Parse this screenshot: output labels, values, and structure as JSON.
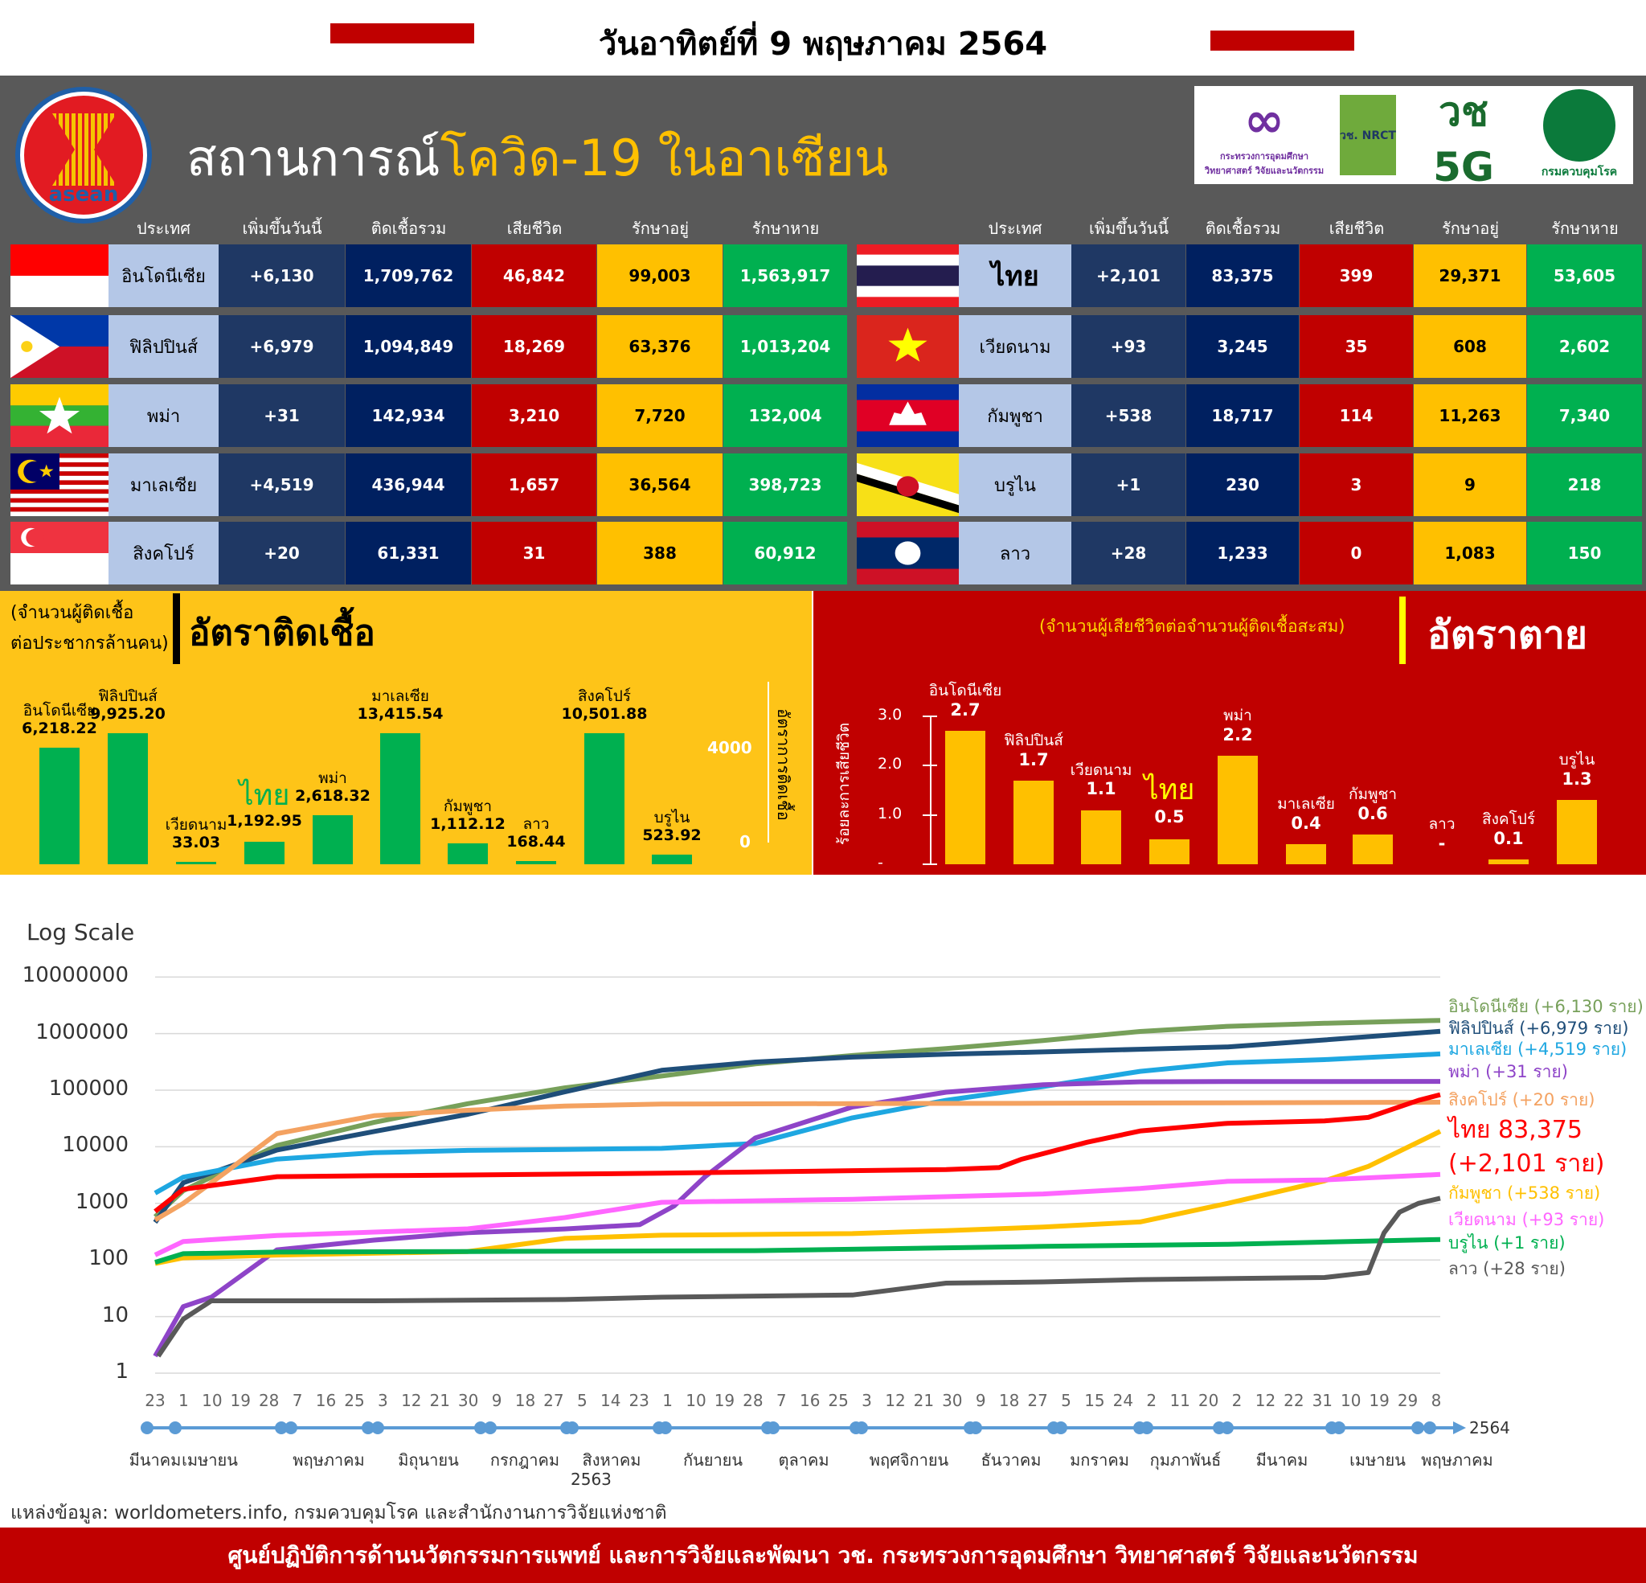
{
  "header": {
    "date_title": "วันอาทิตย์ที่ 9 พฤษภาคม 2564",
    "title_white": "สถานการณ์",
    "title_yellow": "โควิด-19 ในอาเซียน",
    "asean_logo_text": "asean",
    "logos": [
      "กระทรวงการอุดมศึกษา วิทยาศาสตร์ วิจัยและนวัตกรรม",
      "วช. NRCT",
      "วช 5G",
      "กรมควบคุมโรค"
    ]
  },
  "colors": {
    "increase": "#1f3864",
    "total": "#002060",
    "deaths": "#c00000",
    "active": "#ffc000",
    "recovered": "#00b050",
    "name": "#b4c7e7",
    "panel": "#595959"
  },
  "table": {
    "headers": [
      "ประเทศ",
      "เพิ่มขึ้นวันนี้",
      "ติดเชื้อรวม",
      "เสียชีวิต",
      "รักษาอยู่",
      "รักษาหาย"
    ],
    "left": [
      {
        "flag": "indonesia-flag",
        "name": "อินโดนีเซีย",
        "increase": "+6,130",
        "total": "1,709,762",
        "deaths": "46,842",
        "active": "99,003",
        "recovered": "1,563,917"
      },
      {
        "flag": "philippines-flag",
        "name": "ฟิลิปปินส์",
        "increase": "+6,979",
        "total": "1,094,849",
        "deaths": "18,269",
        "active": "63,376",
        "recovered": "1,013,204"
      },
      {
        "flag": "myanmar-flag",
        "name": "พม่า",
        "increase": "+31",
        "total": "142,934",
        "deaths": "3,210",
        "active": "7,720",
        "recovered": "132,004"
      },
      {
        "flag": "malaysia-flag",
        "name": "มาเลเซีย",
        "increase": "+4,519",
        "total": "436,944",
        "deaths": "1,657",
        "active": "36,564",
        "recovered": "398,723"
      },
      {
        "flag": "singapore-flag",
        "name": "สิงคโปร์",
        "increase": "+20",
        "total": "61,331",
        "deaths": "31",
        "active": "388",
        "recovered": "60,912"
      }
    ],
    "right": [
      {
        "flag": "thailand-flag",
        "name": "ไทย",
        "increase": "+2,101",
        "total": "83,375",
        "deaths": "399",
        "active": "29,371",
        "recovered": "53,605"
      },
      {
        "flag": "vietnam-flag",
        "name": "เวียดนาม",
        "increase": "+93",
        "total": "3,245",
        "deaths": "35",
        "active": "608",
        "recovered": "2,602"
      },
      {
        "flag": "cambodia-flag",
        "name": "กัมพูชา",
        "increase": "+538",
        "total": "18,717",
        "deaths": "114",
        "active": "11,263",
        "recovered": "7,340"
      },
      {
        "flag": "brunei-flag",
        "name": "บรูไน",
        "increase": "+1",
        "total": "230",
        "deaths": "3",
        "active": "9",
        "recovered": "218"
      },
      {
        "flag": "laos-flag",
        "name": "ลาว",
        "increase": "+28",
        "total": "1,233",
        "deaths": "0",
        "active": "1,083",
        "recovered": "150"
      }
    ]
  },
  "chart_data": [
    {
      "type": "bar",
      "title": "อัตราติดเชื้อ",
      "subtitle": [
        "(จำนวนผู้ติดเชื้อ",
        "ต่อประชากรล้านคน)"
      ],
      "ylabel": "อัตราการติดเชื้อ",
      "yticks": [
        "4000",
        "0"
      ],
      "bar_color": "#00b050",
      "categories": [
        "อินโดนีเซีย",
        "ฟิลิปปินส์",
        "เวียดนาม",
        "ไทย",
        "พม่า",
        "มาเลเซีย",
        "กัมพูชา",
        "ลาว",
        "สิงคโปร์",
        "บรูไน"
      ],
      "values": [
        6218.22,
        9925.2,
        33.03,
        1192.95,
        2618.32,
        13415.54,
        1112.12,
        168.44,
        10501.88,
        523.92
      ],
      "labels": [
        "6,218.22",
        "9,925.20",
        "33.03",
        "1,192.95",
        "2,618.32",
        "13,415.54",
        "1,112.12",
        "168.44",
        "10,501.88",
        "523.92"
      ]
    },
    {
      "type": "bar",
      "title": "อัตราตาย",
      "subtitle": "(จำนวนผู้เสียชีวิตต่อจำนวนผู้ติดเชื้อสะสม)",
      "ylabel": "ร้อยละการเสียชีวิต",
      "yticks": [
        "3.0",
        "2.0",
        "1.0",
        "-"
      ],
      "ylim": [
        0,
        3
      ],
      "bar_color": "#ffc000",
      "categories": [
        "อินโดนีเซีย",
        "ฟิลิปปินส์",
        "เวียดนาม",
        "ไทย",
        "พม่า",
        "มาเลเซีย",
        "กัมพูชา",
        "ลาว",
        "สิงคโปร์",
        "บรูไน"
      ],
      "values": [
        2.7,
        1.7,
        1.1,
        0.5,
        2.2,
        0.4,
        0.6,
        0,
        0.1,
        1.3
      ],
      "labels": [
        "2.7",
        "1.7",
        "1.1",
        "0.5",
        "2.2",
        "0.4",
        "0.6",
        "-",
        "0.1",
        "1.3"
      ]
    },
    {
      "type": "line",
      "scale": "log",
      "title": "Log Scale",
      "ylim": [
        1,
        10000000
      ],
      "yticks": [
        "10000000",
        "1000000",
        "100000",
        "10000",
        "1000",
        "100",
        "10",
        "1"
      ],
      "xticks": [
        "23",
        "1",
        "10",
        "19",
        "28",
        "7",
        "16",
        "25",
        "3",
        "12",
        "21",
        "30",
        "9",
        "18",
        "27",
        "5",
        "14",
        "23",
        "1",
        "10",
        "19",
        "28",
        "7",
        "16",
        "25",
        "3",
        "12",
        "21",
        "30",
        "9",
        "18",
        "27",
        "5",
        "15",
        "24",
        "2",
        "11",
        "20",
        "2",
        "12",
        "22",
        "31",
        "10",
        "19",
        "29",
        "8"
      ],
      "months": [
        "มีนาคม",
        "เมษายน",
        "พฤษภาคม",
        "มิถุนายน",
        "กรกฎาคม",
        "สิงหาคม",
        "กันยายน",
        "ตุลาคม",
        "พฤศจิกายน",
        "ธันวาคม",
        "มกราคม",
        "กุมภาพันธ์",
        "มีนาคม",
        "เมษายน",
        "พฤษภาคม"
      ],
      "year_labels": [
        "2563",
        "2564"
      ],
      "series": [
        {
          "name": "อินโดนีเซีย (+6,130  ราย)",
          "color": "#77a05a",
          "points": [
            [
              "2020-03-23",
              579
            ],
            [
              "2020-04-01",
              1677
            ],
            [
              "2020-05-01",
              10551
            ],
            [
              "2020-06-01",
              26940
            ],
            [
              "2020-07-01",
              57770
            ],
            [
              "2020-08-01",
              109936
            ],
            [
              "2020-09-01",
              177571
            ],
            [
              "2020-10-01",
              291182
            ],
            [
              "2020-11-01",
              410088
            ],
            [
              "2020-12-01",
              543975
            ],
            [
              "2021-01-01",
              751270
            ],
            [
              "2021-02-01",
              1089308
            ],
            [
              "2021-03-01",
              1341314
            ],
            [
              "2021-04-01",
              1517854
            ],
            [
              "2021-05-08",
              1709762
            ]
          ]
        },
        {
          "name": "ฟิลิปปินส์ (+6,979 ราย)",
          "color": "#1f4e79",
          "points": [
            [
              "2020-03-23",
              462
            ],
            [
              "2020-04-01",
              2311
            ],
            [
              "2020-05-01",
              8772
            ],
            [
              "2020-06-01",
              18638
            ],
            [
              "2020-07-01",
              37514
            ],
            [
              "2020-08-01",
              93354
            ],
            [
              "2020-09-01",
              224264
            ],
            [
              "2020-10-01",
              314079
            ],
            [
              "2020-11-01",
              383113
            ],
            [
              "2020-12-01",
              431630
            ],
            [
              "2021-01-01",
              474064
            ],
            [
              "2021-02-01",
              528853
            ],
            [
              "2021-03-01",
              580442
            ],
            [
              "2021-04-01",
              771497
            ],
            [
              "2021-05-08",
              1094849
            ]
          ]
        },
        {
          "name": "มาเลเซีย (+4,519 ราย)",
          "color": "#1ea7e1",
          "points": [
            [
              "2020-03-23",
              1518
            ],
            [
              "2020-04-01",
              2908
            ],
            [
              "2020-05-01",
              6071
            ],
            [
              "2020-06-01",
              7857
            ],
            [
              "2020-07-01",
              8640
            ],
            [
              "2020-08-01",
              8976
            ],
            [
              "2020-09-01",
              9354
            ],
            [
              "2020-10-01",
              11484
            ],
            [
              "2020-11-01",
              32505
            ],
            [
              "2020-12-01",
              66228
            ],
            [
              "2021-01-01",
              116014
            ],
            [
              "2021-02-01",
              214959
            ],
            [
              "2021-03-01",
              304135
            ],
            [
              "2021-04-01",
              346223
            ],
            [
              "2021-05-08",
              436944
            ]
          ]
        },
        {
          "name": "พม่า (+31 ราย)",
          "color": "#8e44c8",
          "points": [
            [
              "2020-03-23",
              2
            ],
            [
              "2020-04-01",
              15
            ],
            [
              "2020-04-10",
              22
            ],
            [
              "2020-05-01",
              151
            ],
            [
              "2020-06-01",
              224
            ],
            [
              "2020-07-01",
              303
            ],
            [
              "2020-08-01",
              353
            ],
            [
              "2020-08-25",
              420
            ],
            [
              "2020-09-05",
              900
            ],
            [
              "2020-09-15",
              3000
            ],
            [
              "2020-10-01",
              14383
            ],
            [
              "2020-11-01",
              50403
            ],
            [
              "2020-12-01",
              92044
            ],
            [
              "2021-01-01",
              124630
            ],
            [
              "2021-02-01",
              140600
            ],
            [
              "2021-03-01",
              142000
            ],
            [
              "2021-05-08",
              142934
            ]
          ]
        },
        {
          "name": "สิงคโปร์ (+20 ราย)",
          "color": "#f4a261",
          "points": [
            [
              "2020-03-23",
              509
            ],
            [
              "2020-04-01",
              1000
            ],
            [
              "2020-04-15",
              3699
            ],
            [
              "2020-05-01",
              17101
            ],
            [
              "2020-06-01",
              35292
            ],
            [
              "2020-07-01",
              44122
            ],
            [
              "2020-08-01",
              52512
            ],
            [
              "2020-09-01",
              56852
            ],
            [
              "2020-11-01",
              57980
            ],
            [
              "2021-01-01",
              58599
            ],
            [
              "2021-04-01",
              60450
            ],
            [
              "2021-05-08",
              61331
            ]
          ]
        },
        {
          "name": "ไทย 83,375 (+2,101 ราย)",
          "color": "#ff0000",
          "points": [
            [
              "2020-03-23",
              721
            ],
            [
              "2020-04-01",
              1771
            ],
            [
              "2020-05-01",
              2960
            ],
            [
              "2020-06-01",
              3081
            ],
            [
              "2020-07-01",
              3173
            ],
            [
              "2020-09-01",
              3411
            ],
            [
              "2020-11-01",
              3780
            ],
            [
              "2020-12-01",
              3961
            ],
            [
              "2020-12-18",
              4300
            ],
            [
              "2020-12-25",
              6000
            ],
            [
              "2021-01-15",
              12000
            ],
            [
              "2021-02-01",
              19000
            ],
            [
              "2021-03-01",
              26000
            ],
            [
              "2021-04-01",
              28700
            ],
            [
              "2021-04-15",
              33000
            ],
            [
              "2021-05-01",
              66000
            ],
            [
              "2021-05-08",
              83375
            ]
          ]
        },
        {
          "name": "กัมพูชา (+538 ราย)",
          "color": "#ffc000",
          "points": [
            [
              "2020-03-23",
              87
            ],
            [
              "2020-04-01",
              109
            ],
            [
              "2020-05-01",
              122
            ],
            [
              "2020-07-01",
              141
            ],
            [
              "2020-08-01",
              240
            ],
            [
              "2020-09-01",
              274
            ],
            [
              "2020-11-01",
              292
            ],
            [
              "2020-12-01",
              330
            ],
            [
              "2021-01-01",
              382
            ],
            [
              "2021-02-01",
              470
            ],
            [
              "2021-03-01",
              1000
            ],
            [
              "2021-04-01",
              2500
            ],
            [
              "2021-04-15",
              4500
            ],
            [
              "2021-05-08",
              18717
            ]
          ]
        },
        {
          "name": "เวียดนาม (+93 ราย)",
          "color": "#ff66ff",
          "points": [
            [
              "2020-03-23",
              123
            ],
            [
              "2020-04-01",
              212
            ],
            [
              "2020-05-01",
              270
            ],
            [
              "2020-07-01",
              355
            ],
            [
              "2020-08-01",
              560
            ],
            [
              "2020-09-01",
              1044
            ],
            [
              "2020-11-01",
              1180
            ],
            [
              "2021-01-01",
              1465
            ],
            [
              "2021-02-01",
              1830
            ],
            [
              "2021-03-01",
              2450
            ],
            [
              "2021-04-01",
              2600
            ],
            [
              "2021-05-08",
              3245
            ]
          ]
        },
        {
          "name": "บรูไน (+1 ราย)",
          "color": "#00b050",
          "points": [
            [
              "2020-03-23",
              91
            ],
            [
              "2020-04-01",
              129
            ],
            [
              "2020-05-01",
              138
            ],
            [
              "2020-07-01",
              141
            ],
            [
              "2020-10-01",
              146
            ],
            [
              "2021-01-01",
              174
            ],
            [
              "2021-03-01",
              189
            ],
            [
              "2021-05-08",
              230
            ]
          ]
        },
        {
          "name": "ลาว (+28 ราย)",
          "color": "#595959",
          "points": [
            [
              "2020-03-24",
              2
            ],
            [
              "2020-04-01",
              9
            ],
            [
              "2020-04-10",
              19
            ],
            [
              "2020-06-01",
              19
            ],
            [
              "2020-08-01",
              20
            ],
            [
              "2020-09-01",
              22
            ],
            [
              "2020-11-01",
              24
            ],
            [
              "2020-12-01",
              39
            ],
            [
              "2021-01-01",
              41
            ],
            [
              "2021-02-01",
              45
            ],
            [
              "2021-04-01",
              49
            ],
            [
              "2021-04-15",
              60
            ],
            [
              "2021-04-20",
              300
            ],
            [
              "2021-04-25",
              700
            ],
            [
              "2021-05-01",
              1000
            ],
            [
              "2021-05-08",
              1233
            ]
          ]
        }
      ]
    }
  ],
  "source": "แหล่งข้อมูล: worldometers.info, กรมควบคุมโรค และสำนักงานการวิจัยแห่งชาติ",
  "footer": "ศูนย์ปฏิบัติการด้านนวัตกรรมการแพทย์ และการวิจัยและพัฒนา  วช.  กระทรวงการอุดมศึกษา วิทยาศาสตร์ วิจัยและนวัตกรรม"
}
